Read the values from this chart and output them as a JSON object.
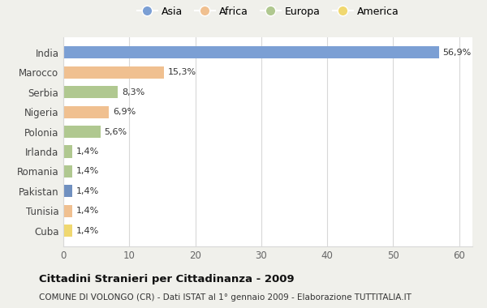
{
  "countries": [
    "India",
    "Marocco",
    "Serbia",
    "Nigeria",
    "Polonia",
    "Irlanda",
    "Romania",
    "Pakistan",
    "Tunisia",
    "Cuba"
  ],
  "values": [
    56.9,
    15.3,
    8.3,
    6.9,
    5.6,
    1.4,
    1.4,
    1.4,
    1.4,
    1.4
  ],
  "labels": [
    "56,9%",
    "15,3%",
    "8,3%",
    "6,9%",
    "5,6%",
    "1,4%",
    "1,4%",
    "1,4%",
    "1,4%",
    "1,4%"
  ],
  "colors": [
    "#7b9fd4",
    "#f0c090",
    "#b0c890",
    "#f0c090",
    "#b0c890",
    "#b0c890",
    "#b0c890",
    "#7090c0",
    "#f0c090",
    "#f0d870"
  ],
  "legend_labels": [
    "Asia",
    "Africa",
    "Europa",
    "America"
  ],
  "legend_colors": [
    "#7b9fd4",
    "#f0c090",
    "#b0c890",
    "#f0d870"
  ],
  "title": "Cittadini Stranieri per Cittadinanza - 2009",
  "subtitle": "COMUNE DI VOLONGO (CR) - Dati ISTAT al 1° gennaio 2009 - Elaborazione TUTTITALIA.IT",
  "xlim": [
    0,
    62
  ],
  "xticks": [
    0,
    10,
    20,
    30,
    40,
    50,
    60
  ],
  "background_color": "#f0f0eb",
  "plot_bg": "#ffffff",
  "grid_color": "#d8d8d8",
  "bar_height": 0.62
}
